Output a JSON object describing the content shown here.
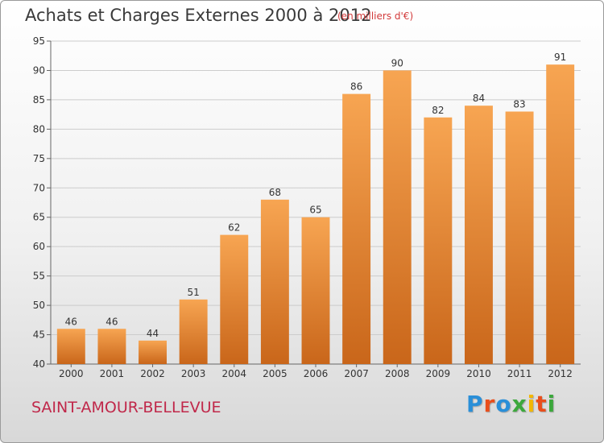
{
  "header": {
    "title": "Achats et Charges Externes 2000 à 2012",
    "unit_note": "(en milliers d'€)"
  },
  "footer": {
    "commune": "SAINT-AMOUR-BELLEVUE",
    "logo": {
      "text": "Proxiti",
      "letters": [
        "P",
        "r",
        "o",
        "x",
        "i",
        "t",
        "i"
      ],
      "colors": [
        "#2a8fd8",
        "#e94e1b",
        "#2a8fd8",
        "#3ca83c",
        "#f2b705",
        "#e94e1b",
        "#3ca83c"
      ]
    }
  },
  "colors": {
    "bar_top": "#f7a552",
    "bar_bottom": "#c9661a",
    "grid": "#cccccc",
    "axis_text": "#333333"
  },
  "chart_data": {
    "type": "bar",
    "title": "Achats et Charges Externes 2000 à 2012",
    "subtitle": "(en milliers d'€)",
    "xlabel": "",
    "ylabel": "",
    "categories": [
      "2000",
      "2001",
      "2002",
      "2003",
      "2004",
      "2005",
      "2006",
      "2007",
      "2008",
      "2009",
      "2010",
      "2011",
      "2012"
    ],
    "values": [
      46,
      46,
      44,
      51,
      62,
      68,
      65,
      86,
      90,
      82,
      84,
      83,
      91
    ],
    "ylim": [
      40,
      95
    ],
    "yticks": [
      40,
      45,
      50,
      55,
      60,
      65,
      70,
      75,
      80,
      85,
      90,
      95
    ],
    "grid": true,
    "data_labels": true
  }
}
